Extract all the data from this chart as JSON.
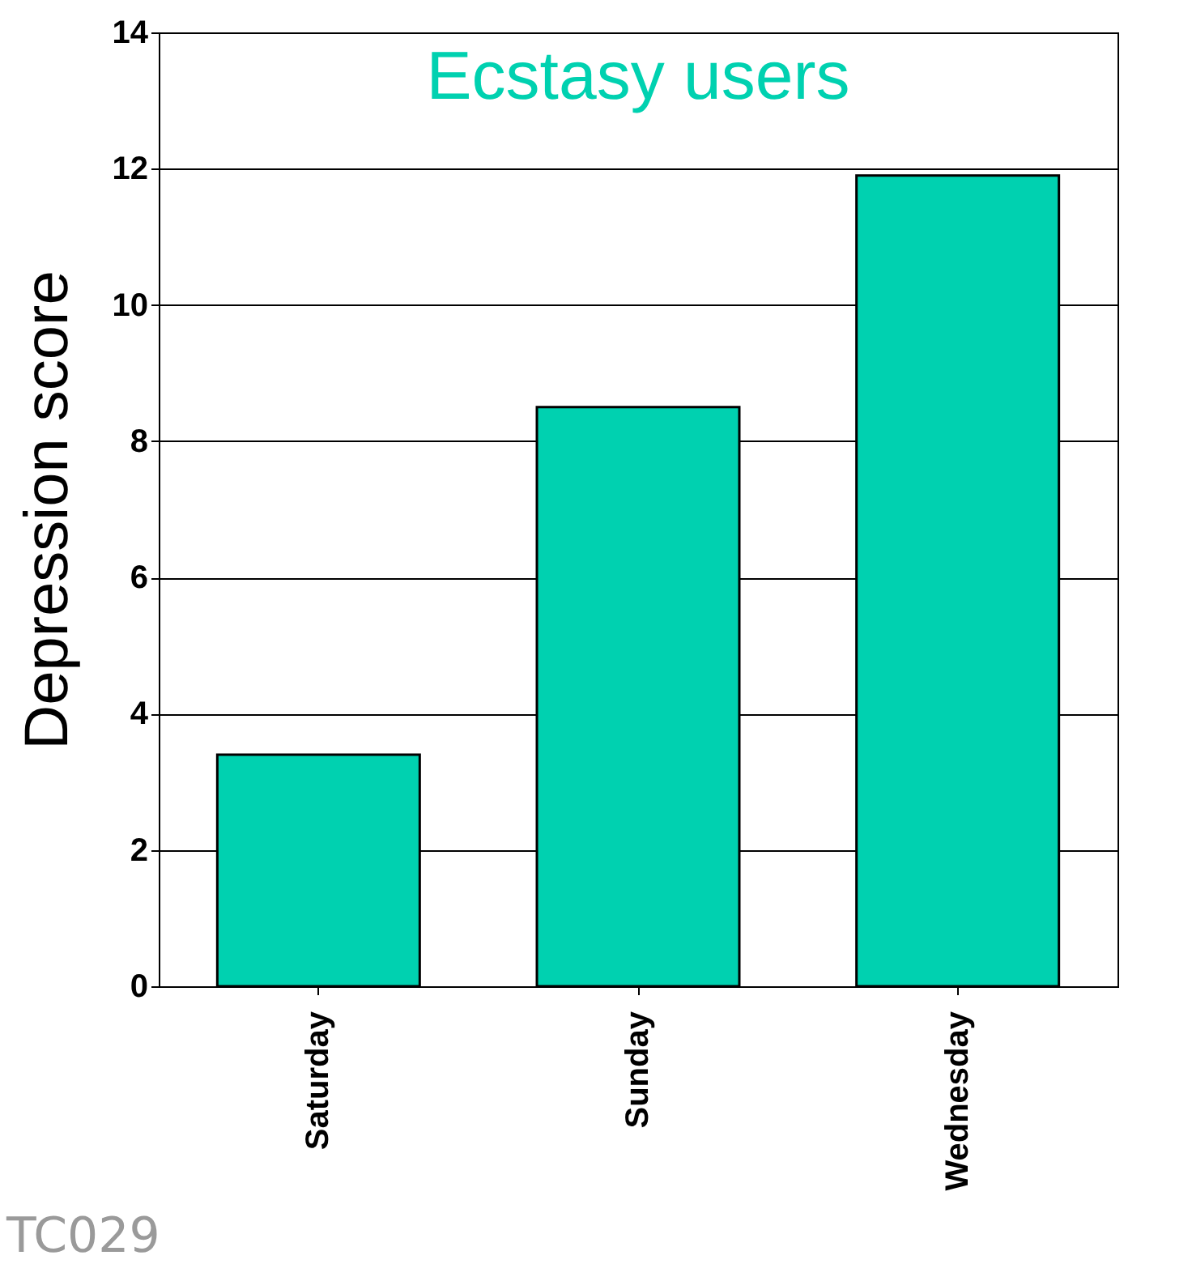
{
  "chart_data": {
    "type": "bar",
    "title": "Ecstasy users",
    "ylabel": "Depression score",
    "categories": [
      "Saturday",
      "Sunday",
      "Wednesday"
    ],
    "values": [
      3.4,
      8.5,
      11.9
    ],
    "color": "#00d1b0",
    "ylim": [
      0,
      14
    ],
    "yticks": [
      0,
      2,
      4,
      6,
      8,
      10,
      12,
      14
    ],
    "grid": "y",
    "annotations": [
      "TC029"
    ]
  }
}
